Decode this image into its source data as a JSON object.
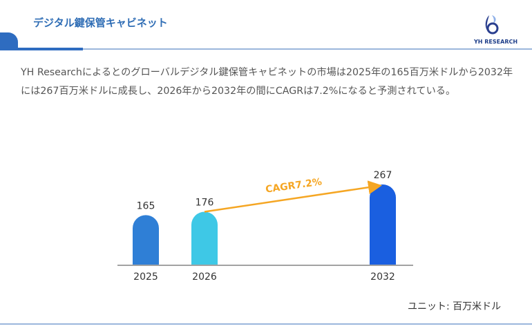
{
  "header": {
    "title": "デジタル鍵保管キャビネット",
    "logo_text": "YH RESEARCH"
  },
  "description": "YH Researchによるとのグローバルデジタル鍵保管キャビネットの市場は2025年の165百万米ドルから2032年には267百万米ドルに成長し、2026年から2032年の間にCAGRは7.2%になると予測されている。",
  "unit_label": "ユニット: 百万米ドル",
  "chart_data": {
    "type": "bar",
    "categories": [
      "2025",
      "2026",
      "2032"
    ],
    "values": [
      165,
      176,
      267
    ],
    "colors": [
      "#2f7fd6",
      "#3ec8e6",
      "#1a5fe0"
    ],
    "annotation": {
      "text": "CAGR7.2%",
      "from": "2026",
      "to": "2032",
      "color": "#f5a623"
    },
    "ylim": [
      0,
      280
    ],
    "grid": false
  }
}
